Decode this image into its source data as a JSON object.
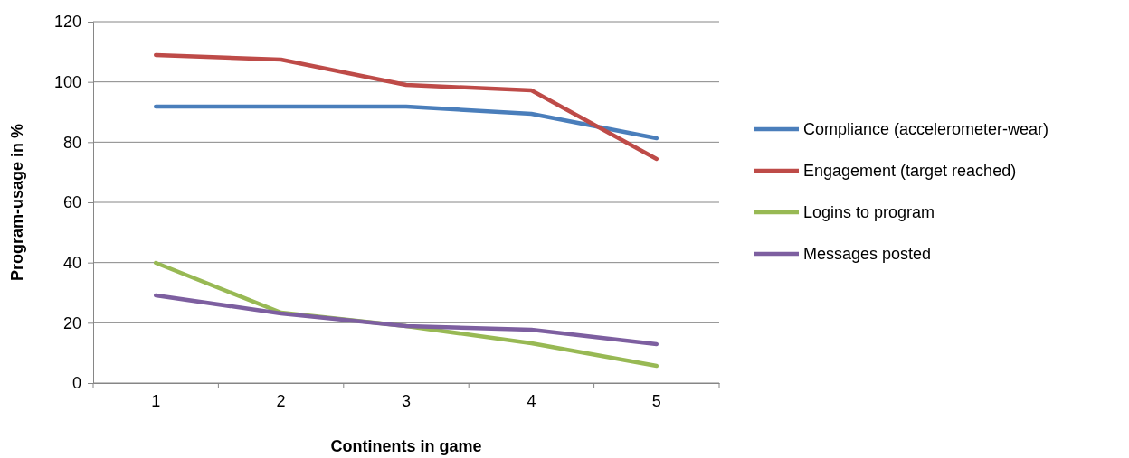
{
  "chart_data": {
    "type": "line",
    "xlabel": "Continents in game",
    "ylabel": "Program-usage in %",
    "categories": [
      "1",
      "2",
      "3",
      "4",
      "5"
    ],
    "series": [
      {
        "name": "Compliance (accelerometer-wear)",
        "color": "#4a7ebb",
        "values": [
          91.8,
          91.8,
          91.8,
          89.4,
          81.3
        ]
      },
      {
        "name": "Engagement (target reached)",
        "color": "#be4b48",
        "values": [
          108.9,
          107.4,
          99,
          97.2,
          74.4
        ]
      },
      {
        "name": "Logins to program",
        "color": "#98b954",
        "values": [
          39.9,
          23.4,
          18.9,
          13.2,
          5.7
        ]
      },
      {
        "name": "Messages posted",
        "color": "#7d5fa0",
        "values": [
          29.1,
          23.1,
          18.9,
          17.7,
          12.9
        ]
      }
    ],
    "ylim": [
      0,
      120
    ],
    "yticks": [
      0,
      20,
      40,
      60,
      80,
      100,
      120
    ],
    "grid": "y",
    "legend": "right",
    "marker": "none",
    "line_style": "solid"
  }
}
